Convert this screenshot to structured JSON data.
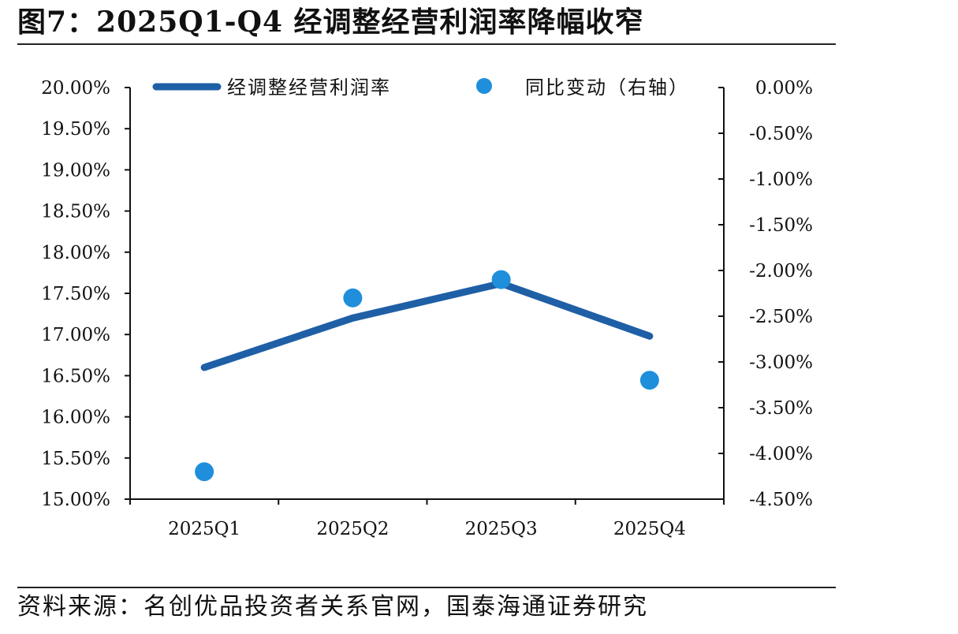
{
  "title": "图7：2025Q1-Q4 经调整经营利润率降幅收窄",
  "source": "资料来源：名创优品投资者关系官网，国泰海通证券研究",
  "colors": {
    "line": "#1f5fa6",
    "dots": "#1f8fdc",
    "axis": "#111111"
  },
  "chart_data": {
    "type": "line",
    "categories": [
      "2025Q1",
      "2025Q2",
      "2025Q3",
      "2025Q4"
    ],
    "series": [
      {
        "name": "经调整经营利润率",
        "axis": "left",
        "style": "line",
        "values": [
          16.6,
          17.2,
          17.62,
          16.98
        ]
      },
      {
        "name": "同比变动（右轴）",
        "axis": "right",
        "style": "scatter",
        "values": [
          -4.2,
          -2.3,
          -2.1,
          -3.2
        ]
      }
    ],
    "y_left": {
      "range": [
        15.0,
        20.0
      ],
      "ticks": [
        "20.00%",
        "19.50%",
        "19.00%",
        "18.50%",
        "18.00%",
        "17.50%",
        "17.00%",
        "16.50%",
        "16.00%",
        "15.50%",
        "15.00%"
      ]
    },
    "y_right": {
      "range": [
        -4.5,
        0.0
      ],
      "ticks": [
        "0.00%",
        "-0.50%",
        "-1.00%",
        "-1.50%",
        "-2.00%",
        "-2.50%",
        "-3.00%",
        "-3.50%",
        "-4.00%",
        "-4.50%"
      ]
    },
    "legend_position": "top",
    "grid": false
  }
}
